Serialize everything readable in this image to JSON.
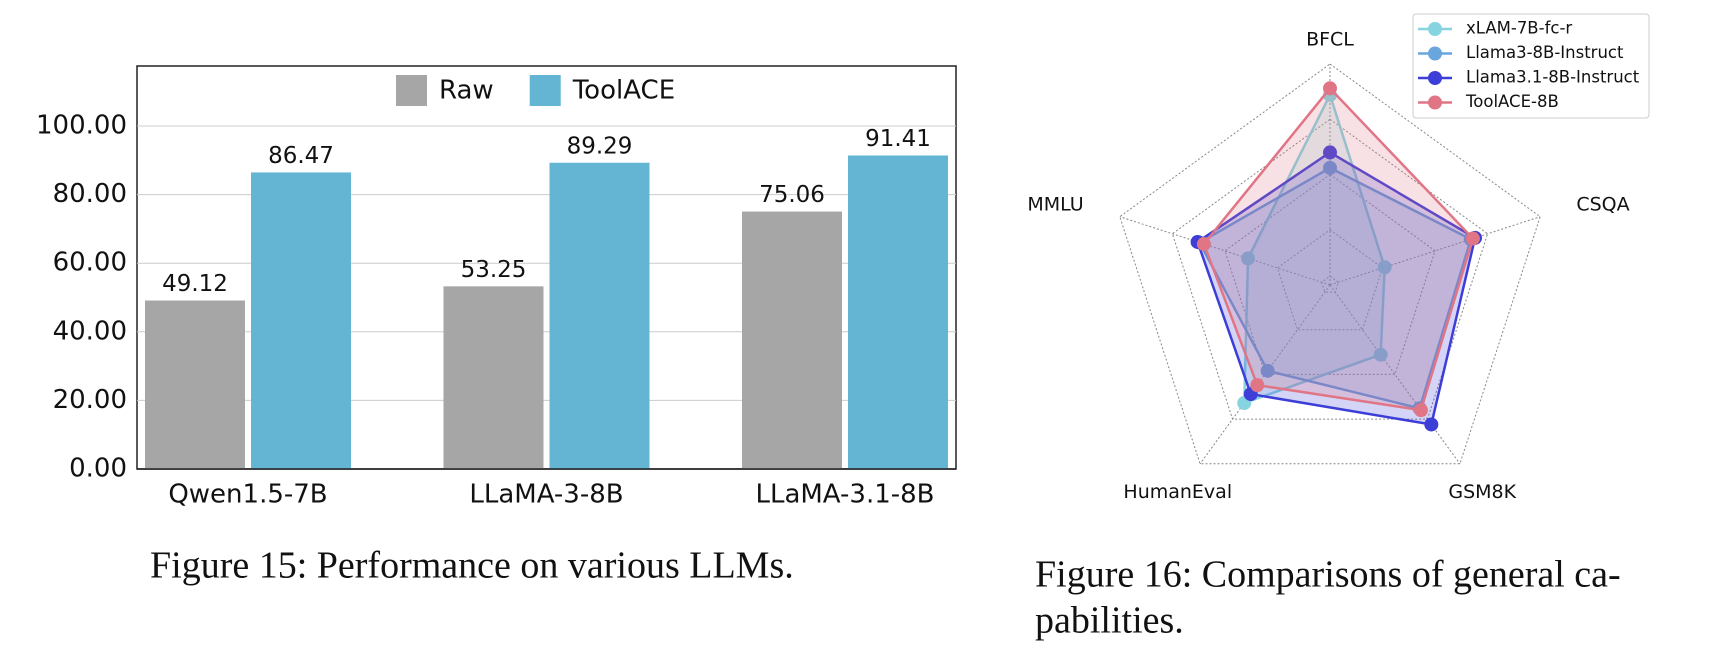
{
  "chart_data": [
    {
      "type": "bar",
      "categories": [
        "Qwen1.5-7B",
        "LLaMA-3-8B",
        "LLaMA-3.1-8B"
      ],
      "series": [
        {
          "name": "Raw",
          "color": "#a6a6a6",
          "values": [
            49.12,
            53.25,
            75.06
          ]
        },
        {
          "name": "ToolACE",
          "color": "#63b5d3",
          "values": [
            86.47,
            89.29,
            91.41
          ]
        }
      ],
      "ylim": [
        0,
        117.5
      ],
      "yticks": [
        {
          "value": 0,
          "label": "0.00"
        },
        {
          "value": 20,
          "label": "20.00"
        },
        {
          "value": 40,
          "label": "40.00"
        },
        {
          "value": 60,
          "label": "60.00"
        },
        {
          "value": 80,
          "label": "80.00"
        },
        {
          "value": 100,
          "label": "100.00"
        }
      ],
      "grid": true,
      "legend": "top",
      "caption": [
        "Figure 15: Performance on various LLMs."
      ]
    },
    {
      "type": "radar",
      "categories": [
        "BFCL",
        "CSQA",
        "GSM8K",
        "HumanEval",
        "MMLU"
      ],
      "series": [
        {
          "name": "xLAM-7B-fc-r",
          "color": "#86d4df",
          "values": [
            86,
            26,
            39,
            66,
            39
          ]
        },
        {
          "name": "Llama3-8B-Instruct",
          "color": "#6aa6de",
          "values": [
            53,
            67,
            69,
            48,
            62
          ]
        },
        {
          "name": "Llama3.1-8B-Instruct",
          "color": "#3d3dd8",
          "values": [
            60,
            69,
            78,
            61,
            63
          ]
        },
        {
          "name": "ToolACE-8B",
          "color": "#e07585",
          "values": [
            89,
            68,
            70,
            56,
            60
          ]
        }
      ],
      "rlim": [
        0,
        100
      ],
      "legend": "top-right",
      "caption": [
        "Figure 16: Comparisons of general ca-",
        "pabilities."
      ]
    }
  ]
}
